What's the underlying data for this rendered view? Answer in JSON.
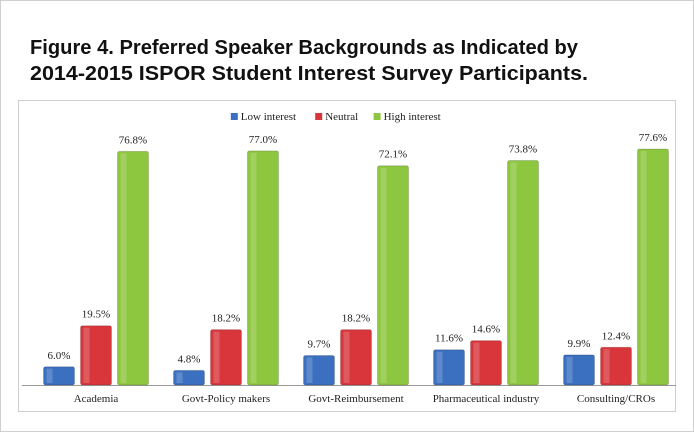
{
  "chart_data": {
    "type": "bar",
    "title": [
      "Figure 4. Preferred Speaker Backgrounds as Indicated by",
      "2014-2015 ISPOR Student Interest Survey Participants."
    ],
    "categories": [
      "Academia",
      "Govt-Policy makers",
      "Govt-Reimbursement",
      "Pharmaceutical industry",
      "Consulting/CROs"
    ],
    "series": [
      {
        "name": "Low interest",
        "color": "#3b6fc0",
        "values": [
          6.0,
          4.8,
          9.7,
          11.6,
          9.9
        ],
        "value_labels": [
          "6.0%",
          "4.8%",
          "9.7%",
          "11.6%",
          "9.9%"
        ]
      },
      {
        "name": "Neutral",
        "color": "#d8363b",
        "values": [
          19.5,
          18.2,
          18.2,
          14.6,
          12.4
        ],
        "value_labels": [
          "19.5%",
          "18.2%",
          "18.2%",
          "14.6%",
          "12.4%"
        ]
      },
      {
        "name": "High interest",
        "color": "#8dc63f",
        "values": [
          76.8,
          77.0,
          72.1,
          73.8,
          77.6
        ],
        "value_labels": [
          "76.8%",
          "77.0%",
          "72.1%",
          "73.8%",
          "77.6%"
        ]
      }
    ],
    "legend": "top"
  }
}
